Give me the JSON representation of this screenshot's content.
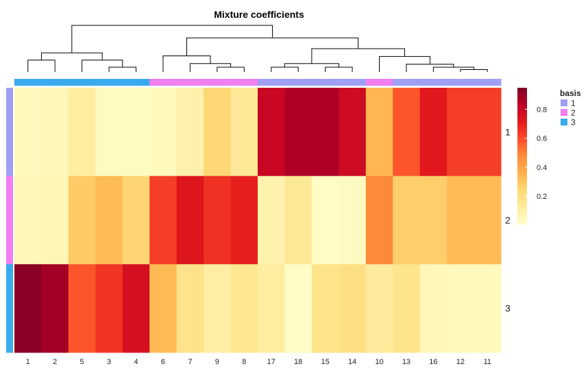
{
  "chart_data": {
    "type": "heatmap",
    "title": "Mixture coefficients",
    "columns": [
      "1",
      "2",
      "5",
      "3",
      "4",
      "6",
      "7",
      "9",
      "8",
      "17",
      "18",
      "15",
      "14",
      "10",
      "13",
      "16",
      "12",
      "11"
    ],
    "rows": [
      "1",
      "2",
      "3"
    ],
    "values": [
      [
        0.04,
        0.05,
        0.12,
        0.03,
        0.03,
        0.04,
        0.09,
        0.24,
        0.14,
        0.8,
        0.86,
        0.86,
        0.78,
        0.34,
        0.58,
        0.72,
        0.63,
        0.63
      ],
      [
        0.05,
        0.06,
        0.28,
        0.33,
        0.25,
        0.63,
        0.73,
        0.66,
        0.7,
        0.08,
        0.15,
        0.02,
        0.03,
        0.48,
        0.27,
        0.27,
        0.33,
        0.33
      ],
      [
        0.93,
        0.88,
        0.58,
        0.65,
        0.76,
        0.33,
        0.18,
        0.11,
        0.16,
        0.12,
        0.02,
        0.18,
        0.2,
        0.13,
        0.17,
        0.05,
        0.04,
        0.04
      ]
    ],
    "column_basis": [
      "3",
      "3",
      "3",
      "3",
      "3",
      "2",
      "2",
      "2",
      "2",
      "1",
      "1",
      "1",
      "1",
      "2",
      "1",
      "1",
      "1",
      "1"
    ],
    "row_basis": [
      "1",
      "2",
      "3"
    ],
    "colorbar": {
      "ticks": [
        "0.2",
        "0.4",
        "0.6",
        "0.8"
      ],
      "tick_values": [
        0.2,
        0.4,
        0.6,
        0.8
      ],
      "range": [
        0.0,
        0.95
      ]
    },
    "legend": {
      "title": "basis",
      "entries": [
        "1",
        "2",
        "3"
      ],
      "placement": "right"
    },
    "basis_colors": {
      "1": "#9f9ff4",
      "2": "#f07ff0",
      "3": "#3aaaee"
    },
    "color_scale": [
      "#ffffcc",
      "#ffeda0",
      "#fed976",
      "#feb24c",
      "#fd8d3c",
      "#fc4e2a",
      "#e31a1c",
      "#bd0026",
      "#800026"
    ],
    "dendrogram": {
      "merges": [
        {
          "a": "1",
          "b": "2",
          "height": 0.2
        },
        {
          "a": "3",
          "b": "4",
          "height": 0.08
        },
        {
          "a": "5",
          "b": "m2",
          "height": 0.2
        },
        {
          "a": "m1",
          "b": "m3",
          "height": 0.32
        },
        {
          "a": "9",
          "b": "8",
          "height": 0.08
        },
        {
          "a": "7",
          "b": "m5",
          "height": 0.14
        },
        {
          "a": "6",
          "b": "m6",
          "height": 0.27
        },
        {
          "a": "17",
          "b": "18",
          "height": 0.08
        },
        {
          "a": "15",
          "b": "14",
          "height": 0.08
        },
        {
          "a": "m8",
          "b": "m9",
          "height": 0.14
        },
        {
          "a": "12",
          "b": "11",
          "height": 0.04
        },
        {
          "a": "16",
          "b": "m11",
          "height": 0.08
        },
        {
          "a": "13",
          "b": "m12",
          "height": 0.13
        },
        {
          "a": "10",
          "b": "m13",
          "height": 0.26
        },
        {
          "a": "m10",
          "b": "m14",
          "height": 0.39
        },
        {
          "a": "m7",
          "b": "m15",
          "height": 0.57
        },
        {
          "a": "m4",
          "b": "m16",
          "height": 0.78
        }
      ]
    }
  }
}
